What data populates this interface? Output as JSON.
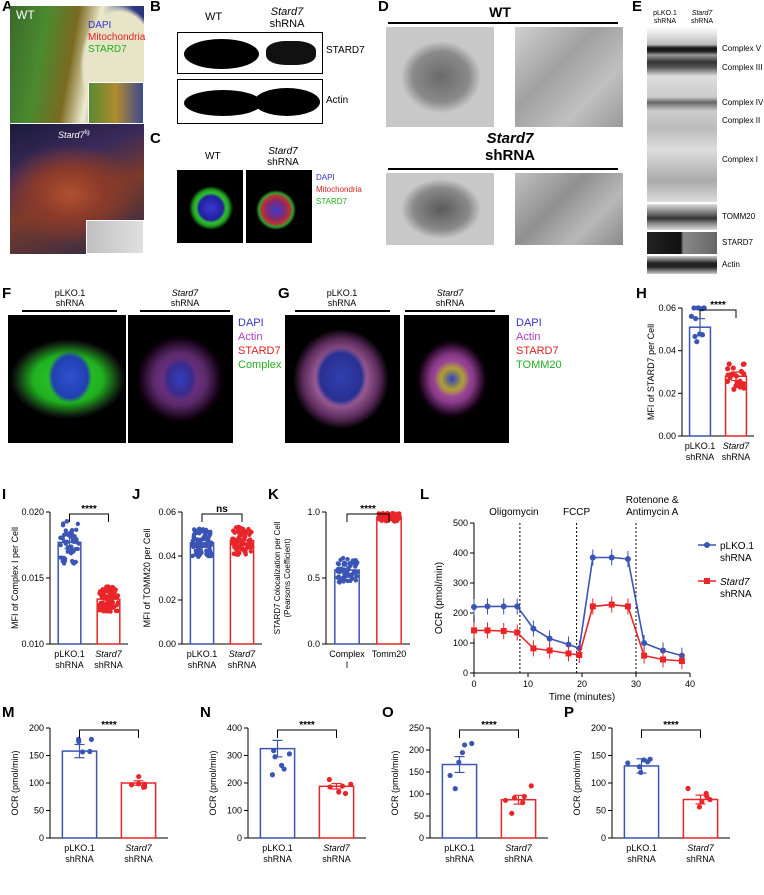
{
  "panels": {
    "A": {
      "letter": "A",
      "wt": "WT",
      "stard_title": "Stard7",
      "stard_sup": "fg",
      "legend": [
        "DAPI",
        "Mitochondria",
        "STARD7"
      ]
    },
    "B": {
      "letter": "B",
      "wt": "WT",
      "sh1": "Stard7",
      "sh2": "shRNA",
      "band1": "STARD7",
      "band2": "Actin"
    },
    "C": {
      "letter": "C",
      "wt": "WT",
      "sh1": "Stard7",
      "sh2": "shRNA",
      "legend": [
        "DAPI",
        "Mitochondria",
        "STARD7"
      ]
    },
    "D": {
      "letter": "D",
      "wt": "WT",
      "sh1": "Stard7",
      "sh2": "shRNA"
    },
    "E": {
      "letter": "E",
      "c1a": "pLKO.1",
      "c1b": "shRNA",
      "c2a": "Stard7",
      "c2b": "shRNA",
      "bands": [
        "Complex V",
        "Complex III",
        "Complex IV",
        "Complex II",
        "Complex I",
        "TOMM20",
        "STARD7",
        "Actin"
      ]
    },
    "F": {
      "letter": "F",
      "c1a": "pLKO.1",
      "c1b": "shRNA",
      "c2a": "Stard7",
      "c2b": "shRNA",
      "legend": [
        "DAPI",
        "Actin",
        "STARD7",
        "Complex I"
      ]
    },
    "G": {
      "letter": "G",
      "c1a": "pLKO.1",
      "c1b": "shRNA",
      "c2a": "Stard7",
      "c2b": "shRNA",
      "legend": [
        "DAPI",
        "Actin",
        "STARD7",
        "TOMM20"
      ]
    },
    "H": {
      "letter": "H"
    },
    "I": {
      "letter": "I"
    },
    "J": {
      "letter": "J"
    },
    "K": {
      "letter": "K"
    },
    "L": {
      "letter": "L"
    },
    "M": {
      "letter": "M"
    },
    "N": {
      "letter": "N"
    },
    "O": {
      "letter": "O"
    },
    "P": {
      "letter": "P"
    }
  },
  "colors": {
    "blue": "#3a55b4",
    "red": "#e8262a",
    "legend_blue": "#3333cc",
    "legend_red": "#e02020",
    "legend_green": "#20b020",
    "legend_purple": "#b040c0"
  },
  "chart_data": [
    {
      "panel": "H",
      "type": "bar",
      "ylabel": "MFI of STARD7 per Cell",
      "ylim": [
        0,
        0.06
      ],
      "yticks": [
        "0.00",
        "0.02",
        "0.04",
        "0.06"
      ],
      "categories": [
        [
          "pLKO.1",
          "shRNA"
        ],
        [
          "Stard7",
          "shRNA"
        ]
      ],
      "values": [
        0.051,
        0.028
      ],
      "errors": [
        0.004,
        0.002
      ],
      "sig": "****"
    },
    {
      "panel": "I",
      "type": "bar",
      "ylabel": "MFI of Complex I per Cell",
      "ylim": [
        0.01,
        0.02
      ],
      "yticks": [
        "0.010",
        "0.015",
        "0.020"
      ],
      "categories": [
        [
          "pLKO.1",
          "shRNA"
        ],
        [
          "Stard7",
          "shRNA"
        ]
      ],
      "values": [
        0.0177,
        0.0134
      ],
      "errors": [
        0.0005,
        0.0003
      ],
      "sig": "****"
    },
    {
      "panel": "J",
      "type": "bar",
      "ylabel": "MFI of TOMM20 per Cell",
      "ylim": [
        0,
        0.06
      ],
      "yticks": [
        "0.00",
        "0.02",
        "0.04",
        "0.06"
      ],
      "categories": [
        [
          "pLKO.1",
          "shRNA"
        ],
        [
          "Stard7",
          "shRNA"
        ]
      ],
      "values": [
        0.046,
        0.047
      ],
      "errors": [
        0.002,
        0.002
      ],
      "sig": "ns"
    },
    {
      "panel": "K",
      "type": "bar",
      "ylabel": "STARD7 Colocalization per Cell",
      "ylabel2": "(Pearsons Coefficient)",
      "ylim": [
        0,
        1.0
      ],
      "yticks": [
        "0.0",
        "0.5",
        "1.0"
      ],
      "categories": [
        [
          "Complex",
          "I"
        ],
        [
          "Tomm20",
          ""
        ]
      ],
      "values": [
        0.56,
        0.96
      ],
      "errors": [
        0.03,
        0.01
      ],
      "sig": "****"
    },
    {
      "panel": "L",
      "type": "line",
      "ylabel": "OCR (pmol/min)",
      "xlabel": "Time (minutes)",
      "xlim": [
        0,
        40
      ],
      "ylim": [
        0,
        500
      ],
      "xticks": [
        "0",
        "10",
        "20",
        "30",
        "40"
      ],
      "yticks": [
        "0",
        "100",
        "200",
        "300",
        "400",
        "500"
      ],
      "annotations": [
        "Oligomycin",
        "FCCP",
        "Rotenone &",
        "Antimycin A"
      ],
      "vlines": [
        8.5,
        19,
        30
      ],
      "series": [
        {
          "name": "pLKO.1",
          "name2": "shRNA",
          "x": [
            0,
            2.5,
            5.5,
            8,
            11,
            14,
            17.5,
            19.5,
            22,
            25.5,
            28.5,
            31.5,
            35,
            38.5
          ],
          "y": [
            220,
            222,
            222,
            222,
            148,
            115,
            95,
            82,
            385,
            385,
            380,
            100,
            75,
            58
          ]
        },
        {
          "name": "Stard7",
          "name2": "shRNA",
          "x": [
            0,
            2.5,
            5.5,
            8,
            11,
            14,
            17.5,
            19.5,
            22,
            25.5,
            28.5,
            31.5,
            35,
            38.5
          ],
          "y": [
            142,
            142,
            140,
            135,
            82,
            75,
            65,
            60,
            222,
            228,
            222,
            58,
            45,
            40
          ]
        }
      ]
    },
    {
      "panel": "M",
      "type": "bar",
      "ylabel": "OCR (pmol/min)",
      "ylim": [
        0,
        200
      ],
      "yticks": [
        "0",
        "50",
        "100",
        "150",
        "200"
      ],
      "categories": [
        [
          "pLKO.1",
          "shRNA"
        ],
        [
          "Stard7",
          "shRNA"
        ]
      ],
      "values": [
        158,
        100
      ],
      "errors": [
        12,
        4
      ],
      "sig": "****"
    },
    {
      "panel": "N",
      "type": "bar",
      "ylabel": "OCR (pmol/min)",
      "ylim": [
        0,
        400
      ],
      "yticks": [
        "0",
        "100",
        "200",
        "300",
        "400"
      ],
      "categories": [
        [
          "pLKO.1",
          "shRNA"
        ],
        [
          "Stard7",
          "shRNA"
        ]
      ],
      "values": [
        325,
        188
      ],
      "errors": [
        30,
        10
      ],
      "sig": "****"
    },
    {
      "panel": "O",
      "type": "bar",
      "ylabel": "OCR (pmol/min)",
      "ylim": [
        0,
        250
      ],
      "yticks": [
        "0",
        "50",
        "100",
        "150",
        "200",
        "250"
      ],
      "categories": [
        [
          "pLKO.1",
          "shRNA"
        ],
        [
          "Stard7",
          "shRNA"
        ]
      ],
      "values": [
        167,
        87
      ],
      "errors": [
        18,
        10
      ],
      "sig": "****"
    },
    {
      "panel": "P",
      "type": "bar",
      "ylabel": "OCR (pmol/min)",
      "ylim": [
        0,
        200
      ],
      "yticks": [
        "0",
        "50",
        "100",
        "150",
        "200"
      ],
      "categories": [
        [
          "pLKO.1",
          "shRNA"
        ],
        [
          "Stard7",
          "shRNA"
        ]
      ],
      "values": [
        131,
        70
      ],
      "errors": [
        13,
        8
      ],
      "sig": "****"
    }
  ]
}
